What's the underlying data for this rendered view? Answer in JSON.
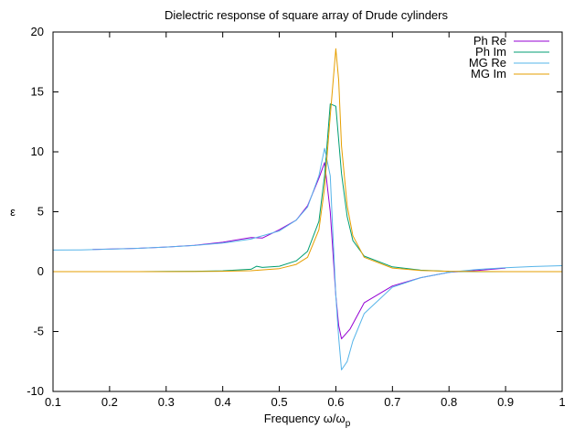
{
  "chart_data": {
    "type": "line",
    "title": "Dielectric response of square array of Drude cylinders",
    "xlabel": "Frequency ω/ω",
    "xlabel_subscript": "p",
    "ylabel": "ε",
    "xlim": [
      0.1,
      1.0
    ],
    "ylim": [
      -10,
      20
    ],
    "xticks": [
      0.1,
      0.2,
      0.3,
      0.4,
      0.5,
      0.6,
      0.7,
      0.8,
      0.9,
      1.0
    ],
    "xtick_labels": [
      "0.1",
      "0.2",
      "0.3",
      "0.4",
      "0.5",
      "0.6",
      "0.7",
      "0.8",
      "0.9",
      "1"
    ],
    "yticks": [
      -10,
      -5,
      0,
      5,
      10,
      15,
      20
    ],
    "ytick_labels": [
      "-10",
      "-5",
      "0",
      "5",
      "10",
      "15",
      "20"
    ],
    "grid": false,
    "legend_position": "top-right",
    "series": [
      {
        "name": "Ph Re",
        "color": "#9400d3",
        "points": [
          [
            0.17,
            1.85
          ],
          [
            0.25,
            1.95
          ],
          [
            0.3,
            2.05
          ],
          [
            0.35,
            2.2
          ],
          [
            0.4,
            2.45
          ],
          [
            0.45,
            2.85
          ],
          [
            0.47,
            2.8
          ],
          [
            0.5,
            3.5
          ],
          [
            0.53,
            4.3
          ],
          [
            0.55,
            5.5
          ],
          [
            0.57,
            7.8
          ],
          [
            0.58,
            9.1
          ],
          [
            0.59,
            5.0
          ],
          [
            0.6,
            -2.0
          ],
          [
            0.605,
            -4.5
          ],
          [
            0.61,
            -5.6
          ],
          [
            0.625,
            -4.8
          ],
          [
            0.65,
            -2.6
          ],
          [
            0.7,
            -1.2
          ],
          [
            0.75,
            -0.5
          ],
          [
            0.8,
            -0.05
          ],
          [
            0.85,
            0.1
          ],
          [
            0.9,
            0.3
          ]
        ]
      },
      {
        "name": "Ph Im",
        "color": "#009e73",
        "points": [
          [
            0.17,
            0.0
          ],
          [
            0.25,
            0.0
          ],
          [
            0.3,
            0.02
          ],
          [
            0.35,
            0.03
          ],
          [
            0.4,
            0.07
          ],
          [
            0.45,
            0.2
          ],
          [
            0.46,
            0.45
          ],
          [
            0.47,
            0.35
          ],
          [
            0.5,
            0.45
          ],
          [
            0.53,
            0.9
          ],
          [
            0.55,
            1.7
          ],
          [
            0.57,
            4.2
          ],
          [
            0.58,
            8.0
          ],
          [
            0.59,
            14.0
          ],
          [
            0.6,
            13.8
          ],
          [
            0.61,
            8.2
          ],
          [
            0.62,
            4.6
          ],
          [
            0.63,
            2.6
          ],
          [
            0.65,
            1.3
          ],
          [
            0.7,
            0.4
          ],
          [
            0.75,
            0.12
          ],
          [
            0.8,
            0.02
          ],
          [
            0.85,
            0.0
          ],
          [
            0.9,
            0.0
          ]
        ]
      },
      {
        "name": "MG Re",
        "color": "#56b4e9",
        "points": [
          [
            0.1,
            1.8
          ],
          [
            0.15,
            1.82
          ],
          [
            0.2,
            1.88
          ],
          [
            0.25,
            1.95
          ],
          [
            0.3,
            2.05
          ],
          [
            0.35,
            2.18
          ],
          [
            0.4,
            2.38
          ],
          [
            0.45,
            2.72
          ],
          [
            0.5,
            3.4
          ],
          [
            0.53,
            4.3
          ],
          [
            0.55,
            5.4
          ],
          [
            0.57,
            8.0
          ],
          [
            0.58,
            10.3
          ],
          [
            0.59,
            8.0
          ],
          [
            0.595,
            3.0
          ],
          [
            0.6,
            -2.0
          ],
          [
            0.605,
            -5.5
          ],
          [
            0.61,
            -8.2
          ],
          [
            0.62,
            -7.5
          ],
          [
            0.63,
            -5.8
          ],
          [
            0.65,
            -3.5
          ],
          [
            0.7,
            -1.3
          ],
          [
            0.75,
            -0.5
          ],
          [
            0.8,
            -0.05
          ],
          [
            0.85,
            0.18
          ],
          [
            0.9,
            0.32
          ],
          [
            0.95,
            0.43
          ],
          [
            1.0,
            0.5
          ]
        ]
      },
      {
        "name": "MG Im",
        "color": "#e69f00",
        "points": [
          [
            0.1,
            0.0
          ],
          [
            0.2,
            0.0
          ],
          [
            0.3,
            0.0
          ],
          [
            0.35,
            0.01
          ],
          [
            0.4,
            0.03
          ],
          [
            0.45,
            0.08
          ],
          [
            0.5,
            0.25
          ],
          [
            0.53,
            0.6
          ],
          [
            0.55,
            1.2
          ],
          [
            0.57,
            3.5
          ],
          [
            0.58,
            7.0
          ],
          [
            0.59,
            13.0
          ],
          [
            0.6,
            18.6
          ],
          [
            0.605,
            16.0
          ],
          [
            0.61,
            10.5
          ],
          [
            0.62,
            5.5
          ],
          [
            0.63,
            3.0
          ],
          [
            0.65,
            1.2
          ],
          [
            0.7,
            0.3
          ],
          [
            0.75,
            0.1
          ],
          [
            0.8,
            0.03
          ],
          [
            0.9,
            0.0
          ],
          [
            1.0,
            0.0
          ]
        ]
      }
    ]
  }
}
